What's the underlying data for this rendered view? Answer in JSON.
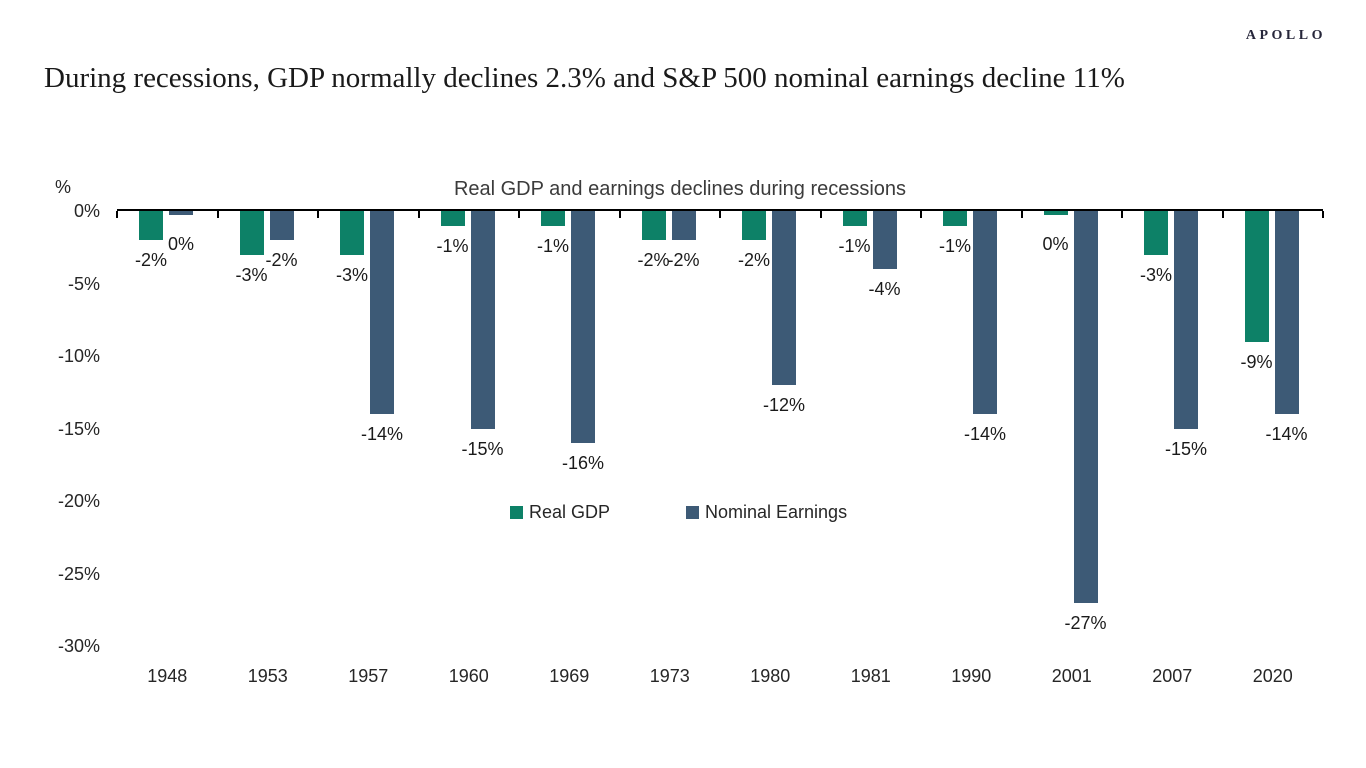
{
  "header": {
    "brand": "APOLLO",
    "title": "During recessions, GDP normally declines 2.3% and S&P 500 nominal earnings decline 11%"
  },
  "chart_data": {
    "type": "bar",
    "title": "Real GDP and earnings declines during recessions",
    "y_axis": {
      "unit": "%",
      "tick_labels": [
        "0%",
        "-5%",
        "-10%",
        "-15%",
        "-20%",
        "-25%",
        "-30%"
      ],
      "max": 0,
      "min": -30,
      "grid": false
    },
    "categories": [
      "1948",
      "1953",
      "1957",
      "1960",
      "1969",
      "1973",
      "1980",
      "1981",
      "1990",
      "2001",
      "2007",
      "2020"
    ],
    "series": [
      {
        "name": "Real GDP",
        "color": "#0D8167",
        "values": [
          -2,
          -3,
          -3,
          -1,
          -1,
          -2,
          -2,
          -1,
          -1,
          0,
          -3,
          -9
        ]
      },
      {
        "name": "Nominal Earnings",
        "color": "#3D5A76",
        "values": [
          0,
          -2,
          -14,
          -15,
          -16,
          -2,
          -12,
          -4,
          -14,
          -27,
          -15,
          -14
        ]
      }
    ],
    "data_labels": true,
    "label_format": "value + %",
    "legend_position": "center-middle"
  }
}
